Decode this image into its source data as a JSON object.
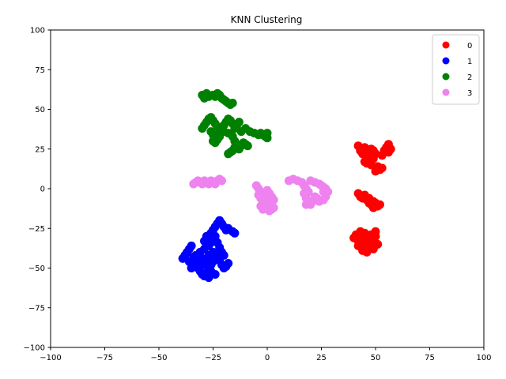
{
  "chart_data": {
    "type": "scatter",
    "title": "KNN Clustering",
    "xlabel": "",
    "ylabel": "",
    "xlim": [
      -100,
      100
    ],
    "ylim": [
      -100,
      100
    ],
    "xticks": [
      -100,
      -75,
      -50,
      -25,
      0,
      25,
      50,
      75,
      100
    ],
    "yticks": [
      -100,
      -75,
      -50,
      -25,
      0,
      25,
      50,
      75,
      100
    ],
    "grid": false,
    "legend_position": "top-right",
    "series": [
      {
        "name": "0",
        "color": "#ff0000",
        "points": [
          [
            42,
            27
          ],
          [
            43,
            24
          ],
          [
            44,
            22
          ],
          [
            45,
            26
          ],
          [
            46,
            20
          ],
          [
            47,
            18
          ],
          [
            46,
            16
          ],
          [
            48,
            15
          ],
          [
            49,
            19
          ],
          [
            47,
            23
          ],
          [
            50,
            22
          ],
          [
            51,
            14
          ],
          [
            52,
            12
          ],
          [
            50,
            11
          ],
          [
            53,
            13
          ],
          [
            54,
            24
          ],
          [
            55,
            26
          ],
          [
            56,
            28
          ],
          [
            57,
            25
          ],
          [
            56,
            23
          ],
          [
            53,
            21
          ],
          [
            49,
            24
          ],
          [
            48,
            25
          ],
          [
            45,
            17
          ],
          [
            42,
            -3
          ],
          [
            43,
            -5
          ],
          [
            44,
            -6
          ],
          [
            45,
            -4
          ],
          [
            46,
            -7
          ],
          [
            47,
            -9
          ],
          [
            48,
            -10
          ],
          [
            49,
            -8
          ],
          [
            50,
            -9
          ],
          [
            51,
            -11
          ],
          [
            52,
            -10
          ],
          [
            47,
            -6
          ],
          [
            49,
            -12
          ],
          [
            40,
            -31
          ],
          [
            41,
            -29
          ],
          [
            42,
            -33
          ],
          [
            43,
            -35
          ],
          [
            44,
            -30
          ],
          [
            45,
            -28
          ],
          [
            46,
            -32
          ],
          [
            47,
            -34
          ],
          [
            48,
            -36
          ],
          [
            49,
            -33
          ],
          [
            50,
            -30
          ],
          [
            51,
            -35
          ],
          [
            47,
            -38
          ],
          [
            45,
            -37
          ],
          [
            43,
            -27
          ],
          [
            44,
            -39
          ],
          [
            46,
            -40
          ],
          [
            48,
            -29
          ],
          [
            50,
            -27
          ],
          [
            42,
            -36
          ],
          [
            49,
            -38
          ]
        ]
      },
      {
        "name": "1",
        "color": "#0000ff",
        "points": [
          [
            -39,
            -44
          ],
          [
            -38,
            -42
          ],
          [
            -37,
            -40
          ],
          [
            -36,
            -38
          ],
          [
            -35,
            -36
          ],
          [
            -34,
            -45
          ],
          [
            -33,
            -48
          ],
          [
            -32,
            -50
          ],
          [
            -31,
            -52
          ],
          [
            -30,
            -54
          ],
          [
            -29,
            -55
          ],
          [
            -28,
            -53
          ],
          [
            -27,
            -50
          ],
          [
            -26,
            -48
          ],
          [
            -25,
            -46
          ],
          [
            -24,
            -44
          ],
          [
            -23,
            -42
          ],
          [
            -22,
            -45
          ],
          [
            -21,
            -48
          ],
          [
            -20,
            -50
          ],
          [
            -19,
            -49
          ],
          [
            -18,
            -47
          ],
          [
            -35,
            -50
          ],
          [
            -33,
            -42
          ],
          [
            -31,
            -40
          ],
          [
            -30,
            -44
          ],
          [
            -28,
            -46
          ],
          [
            -27,
            -42
          ],
          [
            -29,
            -38
          ],
          [
            -27,
            -36
          ],
          [
            -26,
            -34
          ],
          [
            -25,
            -32
          ],
          [
            -24,
            -30
          ],
          [
            -26,
            -28
          ],
          [
            -25,
            -26
          ],
          [
            -24,
            -24
          ],
          [
            -23,
            -22
          ],
          [
            -22,
            -20
          ],
          [
            -21,
            -22
          ],
          [
            -20,
            -24
          ],
          [
            -19,
            -26
          ],
          [
            -18,
            -25
          ],
          [
            -16,
            -27
          ],
          [
            -15,
            -28
          ],
          [
            -23,
            -34
          ],
          [
            -22,
            -37
          ],
          [
            -25,
            -40
          ],
          [
            -28,
            -30
          ],
          [
            -29,
            -33
          ],
          [
            -30,
            -48
          ],
          [
            -26,
            -52
          ],
          [
            -24,
            -54
          ],
          [
            -27,
            -56
          ],
          [
            -21,
            -40
          ],
          [
            -20,
            -42
          ],
          [
            -32,
            -46
          ],
          [
            -34,
            -43
          ],
          [
            -36,
            -46
          ]
        ]
      },
      {
        "name": "2",
        "color": "#008000",
        "points": [
          [
            -30,
            59
          ],
          [
            -29,
            57
          ],
          [
            -28,
            60
          ],
          [
            -27,
            58
          ],
          [
            -25,
            59
          ],
          [
            -24,
            58
          ],
          [
            -23,
            60
          ],
          [
            -22,
            59
          ],
          [
            -21,
            57
          ],
          [
            -20,
            56
          ],
          [
            -19,
            55
          ],
          [
            -18,
            54
          ],
          [
            -17,
            53
          ],
          [
            -16,
            54
          ],
          [
            -30,
            38
          ],
          [
            -29,
            40
          ],
          [
            -28,
            42
          ],
          [
            -27,
            44
          ],
          [
            -26,
            45
          ],
          [
            -25,
            43
          ],
          [
            -24,
            41
          ],
          [
            -23,
            39
          ],
          [
            -22,
            37
          ],
          [
            -26,
            36
          ],
          [
            -25,
            34
          ],
          [
            -24,
            32
          ],
          [
            -25,
            30
          ],
          [
            -24,
            29
          ],
          [
            -23,
            31
          ],
          [
            -22,
            33
          ],
          [
            -20,
            40
          ],
          [
            -19,
            42
          ],
          [
            -18,
            44
          ],
          [
            -17,
            43
          ],
          [
            -16,
            41
          ],
          [
            -15,
            38
          ],
          [
            -14,
            40
          ],
          [
            -13,
            42
          ],
          [
            -20,
            36
          ],
          [
            -18,
            35
          ],
          [
            -16,
            33
          ],
          [
            -15,
            30
          ],
          [
            -14,
            28
          ],
          [
            -15,
            26
          ],
          [
            -16,
            24
          ],
          [
            -17,
            23
          ],
          [
            -18,
            22
          ],
          [
            -13,
            25
          ],
          [
            -12,
            27
          ],
          [
            -11,
            29
          ],
          [
            -10,
            28
          ],
          [
            -9,
            27
          ],
          [
            -8,
            36
          ],
          [
            -6,
            35
          ],
          [
            -4,
            34
          ],
          [
            -3,
            35
          ],
          [
            -2,
            34
          ],
          [
            -1,
            33
          ],
          [
            0,
            35
          ],
          [
            0,
            32
          ],
          [
            -12,
            36
          ],
          [
            -10,
            38
          ]
        ]
      },
      {
        "name": "3",
        "color": "#ee82ee",
        "points": [
          [
            -34,
            3
          ],
          [
            -33,
            4
          ],
          [
            -32,
            5
          ],
          [
            -31,
            4
          ],
          [
            -30,
            3
          ],
          [
            -29,
            5
          ],
          [
            -28,
            4
          ],
          [
            -27,
            3
          ],
          [
            -26,
            5
          ],
          [
            -25,
            4
          ],
          [
            -24,
            3
          ],
          [
            -23,
            5
          ],
          [
            -22,
            6
          ],
          [
            -21,
            5
          ],
          [
            -5,
            2
          ],
          [
            -4,
            0
          ],
          [
            -3,
            -2
          ],
          [
            -4,
            -4
          ],
          [
            -3,
            -6
          ],
          [
            -2,
            -8
          ],
          [
            -1,
            -10
          ],
          [
            0,
            -12
          ],
          [
            1,
            -11
          ],
          [
            2,
            -9
          ],
          [
            3,
            -7
          ],
          [
            2,
            -5
          ],
          [
            1,
            -3
          ],
          [
            0,
            -1
          ],
          [
            -2,
            -3
          ],
          [
            -1,
            -6
          ],
          [
            0,
            -8
          ],
          [
            1,
            -14
          ],
          [
            2,
            -13
          ],
          [
            -3,
            -11
          ],
          [
            -2,
            -13
          ],
          [
            3,
            -12
          ],
          [
            10,
            5
          ],
          [
            12,
            6
          ],
          [
            14,
            5
          ],
          [
            16,
            4
          ],
          [
            17,
            2
          ],
          [
            18,
            0
          ],
          [
            17,
            -3
          ],
          [
            18,
            -6
          ],
          [
            19,
            -9
          ],
          [
            20,
            -10
          ],
          [
            21,
            -8
          ],
          [
            22,
            -5
          ],
          [
            23,
            -6
          ],
          [
            24,
            -8
          ],
          [
            26,
            -7
          ],
          [
            27,
            -5
          ],
          [
            26,
            -2
          ],
          [
            27,
            0
          ],
          [
            28,
            -2
          ],
          [
            26,
            1
          ],
          [
            25,
            2
          ],
          [
            24,
            3
          ],
          [
            22,
            4
          ],
          [
            20,
            5
          ],
          [
            19,
            -2
          ],
          [
            18,
            -10
          ]
        ]
      }
    ]
  }
}
